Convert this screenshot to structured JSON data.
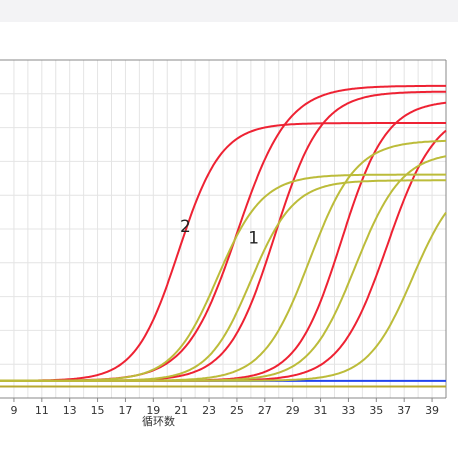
{
  "chart_data": {
    "type": "line",
    "title": "",
    "xlabel": "循环数",
    "ylabel": "",
    "xlim": [
      8,
      40
    ],
    "ylim": [
      -0.06,
      1.12
    ],
    "x_ticks": [
      9,
      11,
      13,
      15,
      17,
      19,
      21,
      23,
      25,
      27,
      29,
      31,
      33,
      35,
      37,
      39
    ],
    "grid": true,
    "legend": "none",
    "colors": {
      "red": "#ee2233",
      "olive": "#bcbc3a",
      "baseline_blue": "#2244ee",
      "baseline_olive": "#b8a830"
    },
    "annotations": [
      {
        "text": "2",
        "x": 21.3,
        "y": 0.52
      },
      {
        "text": "1",
        "x": 26.2,
        "y": 0.48
      }
    ],
    "baselines": [
      {
        "color": "baseline_blue",
        "y": 0.0
      },
      {
        "color": "baseline_olive",
        "y": -0.02
      }
    ],
    "series": [
      {
        "color": "red",
        "plateau": 0.9,
        "mid": 20.8,
        "k": 0.65
      },
      {
        "color": "red",
        "plateau": 1.03,
        "mid": 25.0,
        "k": 0.55
      },
      {
        "color": "red",
        "plateau": 1.01,
        "mid": 27.7,
        "k": 0.6
      },
      {
        "color": "red",
        "plateau": 0.98,
        "mid": 32.5,
        "k": 0.62
      },
      {
        "color": "red",
        "plateau": 0.95,
        "mid": 35.8,
        "k": 0.58
      },
      {
        "color": "olive",
        "plateau": 0.72,
        "mid": 23.6,
        "k": 0.62
      },
      {
        "color": "olive",
        "plateau": 0.7,
        "mid": 26.0,
        "k": 0.65
      },
      {
        "color": "olive",
        "plateau": 0.84,
        "mid": 30.2,
        "k": 0.6
      },
      {
        "color": "olive",
        "plateau": 0.8,
        "mid": 33.5,
        "k": 0.6
      },
      {
        "color": "olive",
        "plateau": 0.72,
        "mid": 37.6,
        "k": 0.62
      }
    ]
  }
}
